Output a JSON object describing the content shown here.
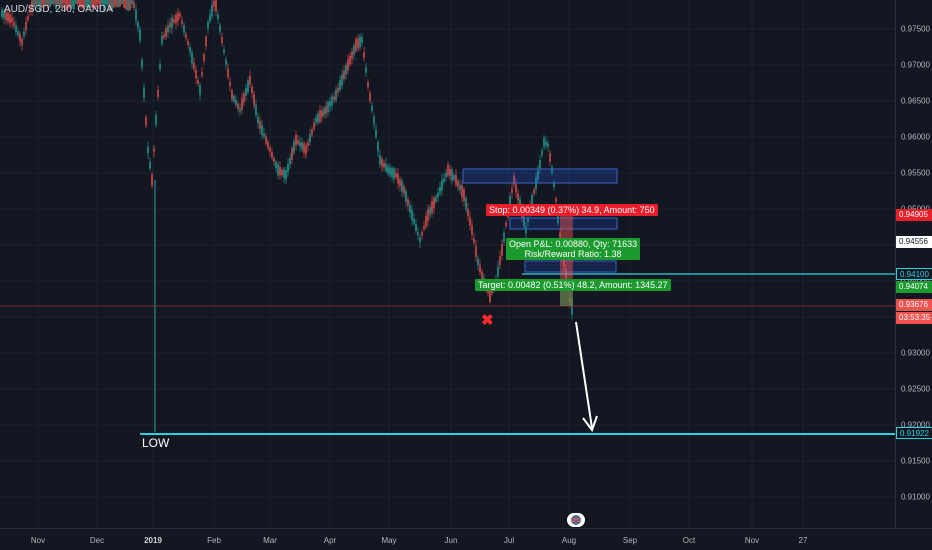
{
  "header": {
    "symbol_info": "AUD/SGD, 240, OANDA"
  },
  "price_axis": {
    "ticks": [
      "0.97500",
      "0.97000",
      "0.96500",
      "0.96000",
      "0.95500",
      "0.95000",
      "0.94500",
      "0.94000",
      "0.93500",
      "0.93000",
      "0.92500",
      "0.92000",
      "0.91500",
      "0.91000"
    ],
    "tags": {
      "stop": "0.94905",
      "current": "0.94556",
      "level": "0.94100",
      "target": "0.94074",
      "entry": "0.93676",
      "countdown": "03:53:35",
      "low": "0.91922"
    }
  },
  "time_axis": {
    "labels": [
      "Nov",
      "Dec",
      "2019",
      "Feb",
      "Mar",
      "Apr",
      "May",
      "Jun",
      "Jul",
      "Aug",
      "Sep",
      "Oct",
      "Nov",
      "27"
    ]
  },
  "position": {
    "stop_label": "Stop: 0.00349 (0.37%) 34.9, Amount: 750",
    "pnl_label": "Open P&L: 0.00880, Qty: 71633",
    "ratio_label": "Risk/Reward Ratio: 1.38",
    "target_label": "Target: 0.00482 (0.51%) 48.2, Amount: 1345.27"
  },
  "annotations": {
    "low_label": "LOW",
    "marker": "✖"
  },
  "colors": {
    "background": "#131722",
    "up_candle": "#26a69a",
    "down_candle": "#ef5350",
    "horizontal_line": "#2ed1e0",
    "stop_red": "#e91e2b",
    "target_green": "#1b9b2e",
    "zone_blue": "#2962ff"
  }
}
